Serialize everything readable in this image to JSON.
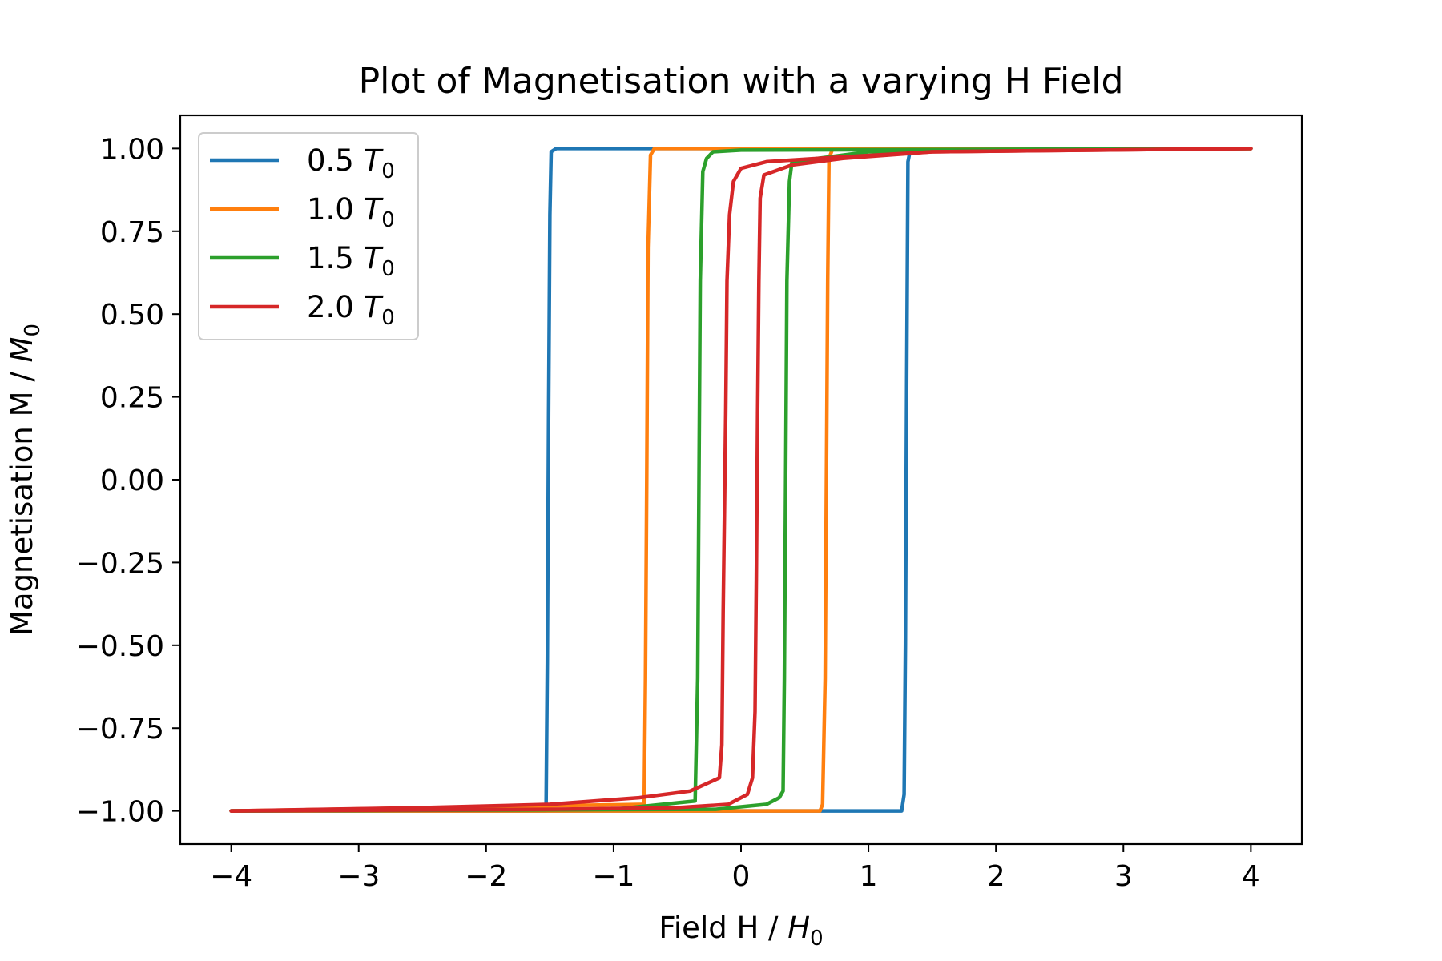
{
  "chart_data": {
    "type": "line",
    "title": "Plot of Magnetisation with a varying H Field",
    "xlabel": {
      "text": "Field H / ",
      "sym": "H",
      "sub": "0"
    },
    "ylabel": {
      "text": "Magnetisation M / ",
      "sym": "M",
      "sub": "0"
    },
    "xlim": [
      -4.4,
      4.4
    ],
    "ylim": [
      -1.1,
      1.1
    ],
    "xticks": [
      -4,
      -3,
      -2,
      -1,
      0,
      1,
      2,
      3,
      4
    ],
    "xtick_labels": [
      "−4",
      "−3",
      "−2",
      "−1",
      "0",
      "1",
      "2",
      "3",
      "4"
    ],
    "yticks": [
      1.0,
      0.75,
      0.5,
      0.25,
      0.0,
      -0.25,
      -0.5,
      -0.75,
      -1.0
    ],
    "ytick_labels": [
      "1.00",
      "0.75",
      "0.50",
      "0.25",
      "0.00",
      "−0.25",
      "−0.50",
      "−0.75",
      "−1.00"
    ],
    "grid": false,
    "legend_position": "top-left",
    "series": [
      {
        "name": "0.5",
        "sym": "T",
        "sub": "0",
        "color": "#1f77b4",
        "descending": [
          [
            4.0,
            1.0
          ],
          [
            -1.45,
            1.0
          ],
          [
            -1.49,
            0.99
          ],
          [
            -1.5,
            0.8
          ],
          [
            -1.51,
            0.2
          ],
          [
            -1.52,
            -0.55
          ],
          [
            -1.53,
            -1.0
          ],
          [
            -4.0,
            -1.0
          ]
        ],
        "ascending": [
          [
            -4.0,
            -1.0
          ],
          [
            1.26,
            -1.0
          ],
          [
            1.28,
            -0.95
          ],
          [
            1.29,
            -0.5
          ],
          [
            1.3,
            0.3
          ],
          [
            1.31,
            0.96
          ],
          [
            1.33,
            1.0
          ],
          [
            4.0,
            1.0
          ]
        ]
      },
      {
        "name": "1.0",
        "sym": "T",
        "sub": "0",
        "color": "#ff7f0e",
        "descending": [
          [
            4.0,
            1.0
          ],
          [
            -0.68,
            1.0
          ],
          [
            -0.71,
            0.98
          ],
          [
            -0.73,
            0.7
          ],
          [
            -0.74,
            0.0
          ],
          [
            -0.75,
            -0.6
          ],
          [
            -0.76,
            -0.98
          ],
          [
            -4.0,
            -1.0
          ]
        ],
        "ascending": [
          [
            -4.0,
            -1.0
          ],
          [
            0.62,
            -1.0
          ],
          [
            0.64,
            -0.98
          ],
          [
            0.66,
            -0.6
          ],
          [
            0.67,
            0.0
          ],
          [
            0.68,
            0.6
          ],
          [
            0.69,
            0.97
          ],
          [
            0.72,
            1.0
          ],
          [
            4.0,
            1.0
          ]
        ]
      },
      {
        "name": "1.5",
        "sym": "T",
        "sub": "0",
        "color": "#2ca02c",
        "descending": [
          [
            4.0,
            1.0
          ],
          [
            0.0,
            0.995
          ],
          [
            -0.22,
            0.99
          ],
          [
            -0.27,
            0.97
          ],
          [
            -0.3,
            0.93
          ],
          [
            -0.32,
            0.6
          ],
          [
            -0.33,
            0.0
          ],
          [
            -0.34,
            -0.6
          ],
          [
            -0.36,
            -0.97
          ],
          [
            -1.0,
            -0.995
          ],
          [
            -4.0,
            -1.0
          ]
        ],
        "ascending": [
          [
            -4.0,
            -1.0
          ],
          [
            -0.2,
            -0.995
          ],
          [
            0.2,
            -0.98
          ],
          [
            0.3,
            -0.96
          ],
          [
            0.33,
            -0.94
          ],
          [
            0.34,
            -0.6
          ],
          [
            0.35,
            0.0
          ],
          [
            0.36,
            0.6
          ],
          [
            0.38,
            0.9
          ],
          [
            0.4,
            0.96
          ],
          [
            1.0,
            0.99
          ],
          [
            4.0,
            1.0
          ]
        ]
      },
      {
        "name": "2.0",
        "sym": "T",
        "sub": "0",
        "color": "#d62728",
        "descending": [
          [
            4.0,
            1.0
          ],
          [
            1.5,
            0.99
          ],
          [
            0.6,
            0.97
          ],
          [
            0.2,
            0.96
          ],
          [
            0.0,
            0.94
          ],
          [
            -0.06,
            0.9
          ],
          [
            -0.09,
            0.8
          ],
          [
            -0.11,
            0.6
          ],
          [
            -0.12,
            0.2
          ],
          [
            -0.14,
            -0.4
          ],
          [
            -0.15,
            -0.8
          ],
          [
            -0.17,
            -0.9
          ],
          [
            -0.4,
            -0.94
          ],
          [
            -0.8,
            -0.96
          ],
          [
            -1.5,
            -0.98
          ],
          [
            -2.5,
            -0.99
          ],
          [
            -4.0,
            -1.0
          ]
        ],
        "ascending": [
          [
            -4.0,
            -1.0
          ],
          [
            -1.5,
            -0.995
          ],
          [
            -0.5,
            -0.99
          ],
          [
            -0.1,
            -0.98
          ],
          [
            0.05,
            -0.95
          ],
          [
            0.09,
            -0.9
          ],
          [
            0.11,
            -0.7
          ],
          [
            0.12,
            -0.3
          ],
          [
            0.13,
            0.2
          ],
          [
            0.14,
            0.6
          ],
          [
            0.15,
            0.85
          ],
          [
            0.18,
            0.92
          ],
          [
            0.4,
            0.95
          ],
          [
            0.8,
            0.97
          ],
          [
            1.5,
            0.99
          ],
          [
            4.0,
            1.0
          ]
        ]
      }
    ]
  }
}
